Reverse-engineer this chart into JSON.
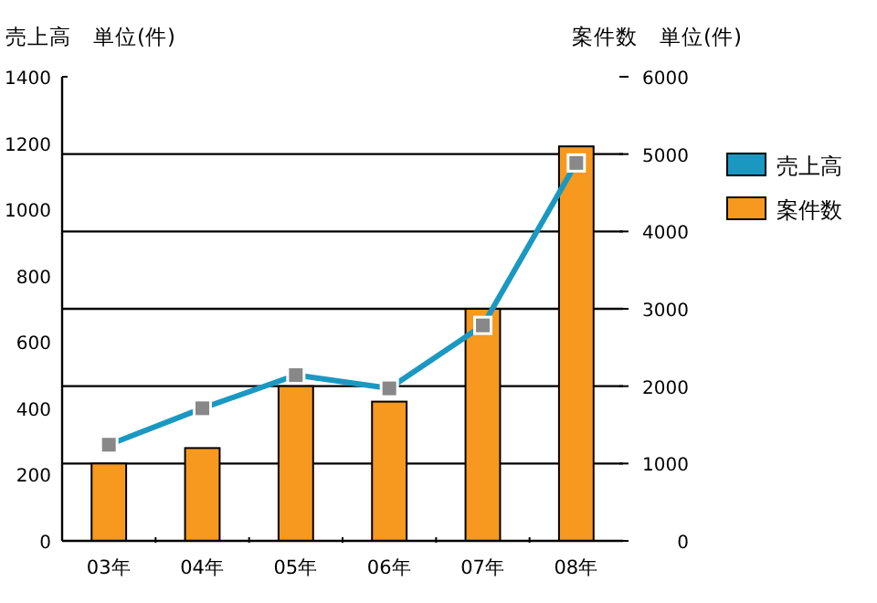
{
  "chart_data": {
    "type": "bar",
    "ylabel": "売上高　単位(件)",
    "y2label": "案件数　単位(件)",
    "categories": [
      "03年",
      "04年",
      "05年",
      "06年",
      "07年",
      "08年"
    ],
    "series": [
      {
        "name": "売上高",
        "type": "line",
        "color": "#1a98c2",
        "values": [
          290,
          400,
          500,
          460,
          650,
          1140
        ]
      },
      {
        "name": "案件数",
        "axis": "y2",
        "color": "#f7991f",
        "values": [
          1000,
          1200,
          2000,
          1800,
          3000,
          5100
        ]
      }
    ],
    "ylim": [
      0,
      1400
    ],
    "yticks": [
      0,
      200,
      400,
      600,
      800,
      1000,
      1200,
      1400
    ],
    "y2lim": [
      0,
      6000
    ],
    "y2ticks": [
      0,
      1000,
      2000,
      3000,
      4000,
      5000,
      6000
    ],
    "grid": true,
    "legend": "right",
    "marker": "square"
  }
}
